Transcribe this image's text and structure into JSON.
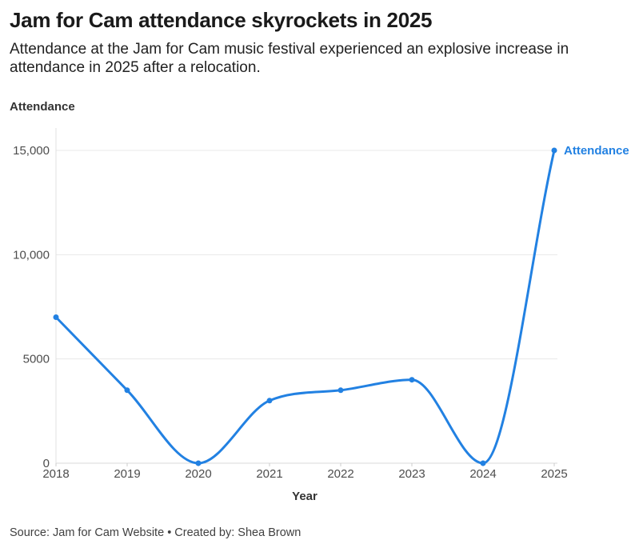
{
  "header": {
    "title": "Jam for Cam attendance skyrockets in 2025",
    "description": "Attendance at the Jam for Cam music festival experienced an explosive increase in attendance in 2025 after a relocation."
  },
  "chart_data": {
    "type": "line",
    "title": "Jam for Cam attendance skyrockets in 2025",
    "categories": [
      "2018",
      "2019",
      "2020",
      "2021",
      "2022",
      "2023",
      "2024",
      "2025"
    ],
    "series": [
      {
        "name": "Attendance",
        "values": [
          7000,
          3500,
          0,
          3000,
          3500,
          4000,
          0,
          15000
        ]
      }
    ],
    "xlabel": "Year",
    "ylabel": "Attendance",
    "ylim": [
      0,
      15000
    ],
    "yticks": {
      "values": [
        0,
        5000,
        10000,
        15000
      ],
      "labels": [
        "0",
        "5000",
        "10,000",
        "15,000"
      ]
    },
    "grid": true,
    "curve": "monotone",
    "series_label": "Attendance",
    "legend_position": "end-of-line",
    "line_color": "#2281e2",
    "gridline_color": "#e8e8e8",
    "zero_line_color": "#d9d9d9",
    "axis_line_color": "#e0e0e0",
    "tick_color": "#cccccc",
    "tick_label_color": "#4d4d4d"
  },
  "footer": {
    "source_label": "Source:",
    "source": "Jam for Cam Website",
    "separator": "•",
    "byline_label": "Created by:",
    "byline": "Shea Brown"
  }
}
